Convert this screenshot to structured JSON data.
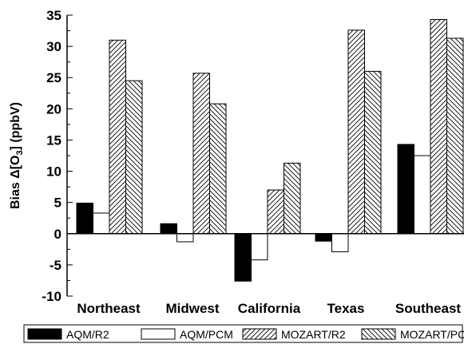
{
  "chart_data": {
    "type": "bar",
    "ylabel_prefix": "Bias Δ[O",
    "ylabel_sub": "3",
    "ylabel_suffix": "] (ppbV)",
    "ylim": [
      -10,
      35
    ],
    "yticks": [
      -10,
      -5,
      0,
      5,
      10,
      15,
      20,
      25,
      30,
      35
    ],
    "ytick_labels": [
      "-10",
      "-5",
      "0",
      "5",
      "10",
      "15",
      "20",
      "25",
      "30",
      "35"
    ],
    "categories": [
      "Northeast",
      "Midwest",
      "California",
      "Texas",
      "Southeast"
    ],
    "series": [
      {
        "name": "AQM/R2",
        "fill": "solid-black",
        "values": [
          4.9,
          1.6,
          -7.6,
          -1.2,
          14.3
        ]
      },
      {
        "name": "AQM/PCM",
        "fill": "white",
        "values": [
          3.3,
          -1.3,
          -4.2,
          -2.9,
          12.5
        ]
      },
      {
        "name": "MOZART/R2",
        "fill": "forward-hatch",
        "values": [
          31.0,
          25.7,
          7.0,
          32.6,
          34.3
        ]
      },
      {
        "name": "MOZART/PCM",
        "fill": "back-hatch",
        "values": [
          24.5,
          20.8,
          11.3,
          26.0,
          31.3
        ]
      }
    ],
    "legend_position": "bottom",
    "grid": false
  }
}
